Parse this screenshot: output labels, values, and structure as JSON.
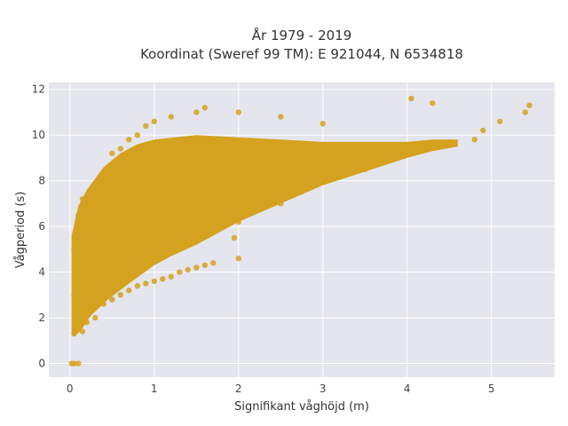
{
  "chart_data": {
    "type": "scatter",
    "title": [
      "År 1979 - 2019",
      "Koordinat (Sweref 99 TM): E 921044, N 6534818"
    ],
    "xlabel": "Signifikant våghöjd (m)",
    "ylabel": "Vågperiod (s)",
    "xlim": [
      -0.25,
      5.75
    ],
    "ylim": [
      -0.6,
      12.3
    ],
    "x_ticks": [
      0,
      1,
      2,
      3,
      4,
      5
    ],
    "y_ticks": [
      0,
      2,
      4,
      6,
      8,
      10,
      12
    ],
    "grid": true,
    "legend": "none",
    "series": [
      {
        "marker_color": "#D4A21E",
        "points": [
          [
            0.02,
            0.0
          ],
          [
            0.05,
            0.0
          ],
          [
            0.1,
            0.0
          ],
          [
            0.05,
            1.3
          ],
          [
            0.1,
            1.5
          ],
          [
            0.15,
            1.4
          ],
          [
            0.2,
            1.8
          ],
          [
            0.3,
            2.0
          ],
          [
            0.05,
            3.0
          ],
          [
            0.1,
            3.5
          ],
          [
            0.2,
            2.8
          ],
          [
            0.3,
            3.2
          ],
          [
            0.4,
            2.6
          ],
          [
            0.5,
            2.8
          ],
          [
            0.6,
            3.0
          ],
          [
            0.7,
            3.2
          ],
          [
            0.8,
            3.4
          ],
          [
            0.9,
            3.5
          ],
          [
            1.0,
            3.6
          ],
          [
            1.1,
            3.7
          ],
          [
            1.2,
            3.8
          ],
          [
            1.3,
            4.0
          ],
          [
            1.4,
            4.1
          ],
          [
            1.5,
            4.2
          ],
          [
            1.6,
            4.3
          ],
          [
            1.7,
            4.4
          ],
          [
            0.05,
            5.0
          ],
          [
            0.1,
            5.5
          ],
          [
            0.1,
            6.5
          ],
          [
            0.15,
            7.2
          ],
          [
            0.2,
            6.0
          ],
          [
            0.3,
            7.0
          ],
          [
            0.4,
            7.8
          ],
          [
            0.5,
            9.2
          ],
          [
            0.6,
            9.4
          ],
          [
            0.7,
            9.8
          ],
          [
            0.8,
            10.0
          ],
          [
            0.9,
            10.4
          ],
          [
            1.0,
            10.6
          ],
          [
            1.2,
            10.8
          ],
          [
            1.5,
            11.0
          ],
          [
            1.6,
            11.2
          ],
          [
            2.0,
            11.0
          ],
          [
            2.5,
            10.8
          ],
          [
            3.0,
            10.5
          ],
          [
            0.5,
            5.0
          ],
          [
            0.6,
            6.0
          ],
          [
            0.8,
            7.0
          ],
          [
            1.0,
            7.5
          ],
          [
            1.2,
            6.0
          ],
          [
            1.5,
            7.0
          ],
          [
            1.8,
            7.2
          ],
          [
            2.0,
            6.2
          ],
          [
            2.2,
            7.4
          ],
          [
            2.5,
            7.0
          ],
          [
            2.8,
            7.8
          ],
          [
            3.0,
            8.0
          ],
          [
            3.2,
            8.2
          ],
          [
            3.5,
            8.5
          ],
          [
            3.8,
            9.0
          ],
          [
            4.0,
            9.3
          ],
          [
            4.2,
            9.5
          ],
          [
            4.5,
            9.7
          ],
          [
            4.8,
            9.8
          ],
          [
            5.1,
            10.6
          ],
          [
            5.4,
            11.0
          ],
          [
            5.45,
            11.3
          ],
          [
            4.05,
            11.6
          ],
          [
            4.3,
            11.4
          ],
          [
            4.9,
            10.2
          ],
          [
            2.0,
            4.6
          ],
          [
            1.95,
            5.5
          ],
          [
            0.5,
            4.5
          ],
          [
            0.7,
            4.8
          ],
          [
            1.0,
            5.2
          ]
        ]
      }
    ]
  }
}
